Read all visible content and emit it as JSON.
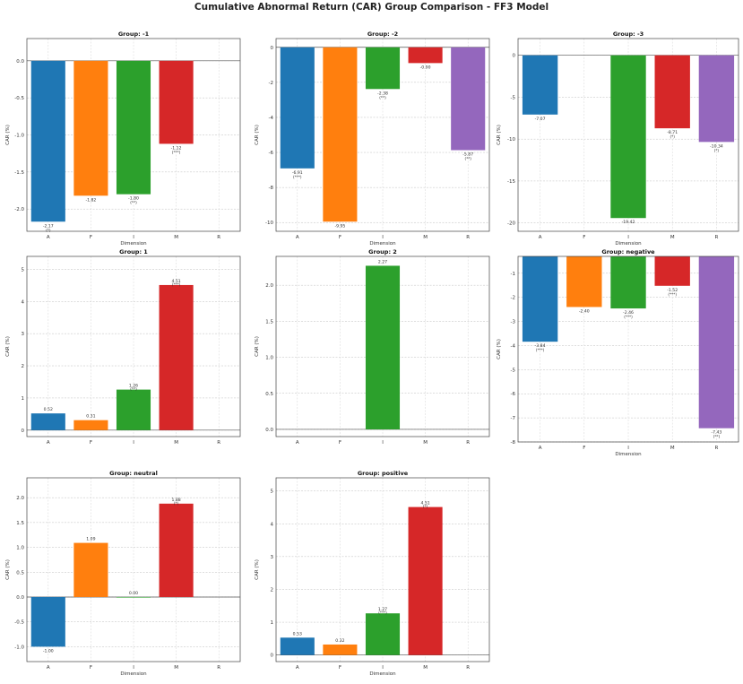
{
  "suptitle": "Cumulative Abnormal Return (CAR) Group Comparison - FF3 Model",
  "colors": {
    "A": "#1f77b4",
    "F": "#ff7f0e",
    "I": "#2ca02c",
    "M": "#d62728",
    "R": "#9467bd"
  },
  "chart_data": [
    {
      "type": "bar",
      "title": "Group: -1",
      "xlabel": "Dimension",
      "ylabel": "CAR (%)",
      "categories": [
        "A",
        "F",
        "I",
        "M",
        "R"
      ],
      "values": [
        -2.17,
        -1.82,
        -1.8,
        -1.12,
        null
      ],
      "labels": [
        "-2.17",
        "-1.82",
        "-1.80",
        "-1.12",
        ""
      ],
      "sig": [
        "(*)",
        "",
        "(**)",
        "(***)",
        ""
      ],
      "ylim": [
        -2.3,
        0.3
      ],
      "yticks": [
        0.0,
        -0.5,
        -1.0,
        -1.5,
        -2.0
      ],
      "ytick_labels": [
        "0.0",
        "-0.5",
        "-1.0",
        "-1.5",
        "-2.0"
      ],
      "grid": true
    },
    {
      "type": "bar",
      "title": "Group: -2",
      "xlabel": "Dimension",
      "ylabel": "CAR (%)",
      "categories": [
        "A",
        "F",
        "I",
        "M",
        "R"
      ],
      "values": [
        -6.91,
        -9.95,
        -2.38,
        -0.9,
        -5.87
      ],
      "labels": [
        "-6.91",
        "-9.95",
        "-2.38",
        "-0.90",
        "-5.87"
      ],
      "sig": [
        "(***)",
        "",
        "(**)",
        "",
        "(**)"
      ],
      "ylim": [
        -10.5,
        0.5
      ],
      "yticks": [
        0,
        -2,
        -4,
        -6,
        -8,
        -10
      ],
      "ytick_labels": [
        "0",
        "-2",
        "-4",
        "-6",
        "-8",
        "-10"
      ],
      "grid": true
    },
    {
      "type": "bar",
      "title": "Group: -3",
      "xlabel": "Dimension",
      "ylabel": "CAR (%)",
      "categories": [
        "A",
        "F",
        "I",
        "M",
        "R"
      ],
      "values": [
        -7.07,
        null,
        -19.42,
        -8.71,
        -10.34
      ],
      "labels": [
        "-7.07",
        "",
        "-19.42",
        "-8.71",
        "-10.34"
      ],
      "sig": [
        "",
        "",
        "",
        "(*)",
        "(*)"
      ],
      "ylim": [
        -21,
        2
      ],
      "yticks": [
        0,
        -5,
        -10,
        -15,
        -20
      ],
      "ytick_labels": [
        "0",
        "-5",
        "-10",
        "-15",
        "-20"
      ],
      "grid": true
    },
    {
      "type": "bar",
      "title": "Group: 1",
      "xlabel": "",
      "ylabel": "CAR (%)",
      "categories": [
        "A",
        "F",
        "I",
        "M",
        "R"
      ],
      "values": [
        0.52,
        0.31,
        1.26,
        4.51,
        null
      ],
      "labels": [
        "0.52",
        "0.31",
        "1.26",
        "4.51",
        ""
      ],
      "sig": [
        "",
        "",
        "(**)",
        "(***)",
        ""
      ],
      "ylim": [
        -0.2,
        5.4
      ],
      "yticks": [
        0,
        1,
        2,
        3,
        4,
        5
      ],
      "ytick_labels": [
        "0",
        "1",
        "2",
        "3",
        "4",
        "5"
      ],
      "grid": true
    },
    {
      "type": "bar",
      "title": "Group: 2",
      "xlabel": "",
      "ylabel": "CAR (%)",
      "categories": [
        "A",
        "F",
        "I",
        "M",
        "R"
      ],
      "values": [
        null,
        null,
        2.27,
        null,
        null
      ],
      "labels": [
        "",
        "",
        "2.27",
        "",
        ""
      ],
      "sig": [
        "",
        "",
        "",
        "",
        ""
      ],
      "ylim": [
        -0.1,
        2.4
      ],
      "yticks": [
        0.0,
        0.5,
        1.0,
        1.5,
        2.0
      ],
      "ytick_labels": [
        "0.0",
        "0.5",
        "1.0",
        "1.5",
        "2.0"
      ],
      "grid": true
    },
    {
      "type": "bar",
      "title": "Group: negative",
      "xlabel": "Dimension",
      "ylabel": "CAR (%)",
      "categories": [
        "A",
        "F",
        "I",
        "M",
        "R"
      ],
      "values": [
        -3.84,
        -2.4,
        -2.46,
        -1.52,
        -7.43
      ],
      "labels": [
        "-3.84",
        "-2.40",
        "-2.46",
        "-1.52",
        "-7.43"
      ],
      "sig": [
        "(***)",
        "",
        "(***)",
        "(***)",
        "(**)"
      ],
      "ylim": [
        -8,
        -0.3
      ],
      "yticks": [
        -1,
        -2,
        -3,
        -4,
        -5,
        -6,
        -7,
        -8
      ],
      "ytick_labels": [
        "-1",
        "-2",
        "-3",
        "-4",
        "-5",
        "-6",
        "-7",
        "-8"
      ],
      "grid": true
    },
    {
      "type": "bar",
      "title": "Group: neutral",
      "xlabel": "Dimension",
      "ylabel": "CAR (%)",
      "categories": [
        "A",
        "F",
        "I",
        "M",
        "R"
      ],
      "values": [
        -1.0,
        1.09,
        0.0,
        1.88,
        null
      ],
      "labels": [
        "-1.00",
        "1.09",
        "0.00",
        "1.88",
        ""
      ],
      "sig": [
        "",
        "",
        "",
        "(*)",
        ""
      ],
      "ylim": [
        -1.3,
        2.4
      ],
      "yticks": [
        2.0,
        1.5,
        1.0,
        0.5,
        0.0,
        -0.5,
        -1.0
      ],
      "ytick_labels": [
        "2.0",
        "1.5",
        "1.0",
        "0.5",
        "0.0",
        "-0.5",
        "-1.0"
      ],
      "grid": true
    },
    {
      "type": "bar",
      "title": "Group: positive",
      "xlabel": "Dimension",
      "ylabel": "CAR (%)",
      "categories": [
        "A",
        "F",
        "I",
        "M",
        "R"
      ],
      "values": [
        0.53,
        0.32,
        1.27,
        4.51,
        null
      ],
      "labels": [
        "0.53",
        "0.32",
        "1.27",
        "4.51",
        ""
      ],
      "sig": [
        "",
        "",
        "(***)",
        "(*)",
        ""
      ],
      "ylim": [
        -0.2,
        5.4
      ],
      "yticks": [
        0,
        1,
        2,
        3,
        4,
        5
      ],
      "ytick_labels": [
        "0",
        "1",
        "2",
        "3",
        "4",
        "5"
      ],
      "grid": true
    }
  ]
}
